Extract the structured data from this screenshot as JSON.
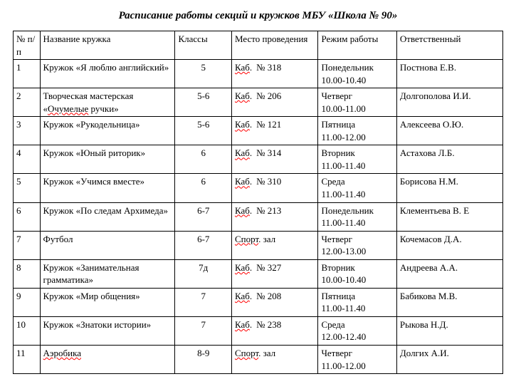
{
  "title": "Расписание работы секций и кружков МБУ «Школа № 90»",
  "headers": {
    "num": "№ п/п",
    "name": "Название кружка",
    "class": "Классы",
    "place": "Место проведения",
    "schedule": "Режим работы",
    "responsible": "Ответственный"
  },
  "kab_prefix": "Каб",
  "kab_dot": ".",
  "num_sign": "№",
  "sport_prefix": "Спорт",
  "sport_suffix": "зал",
  "aerobika": "Аэробика",
  "ochumelye": "Очумелые",
  "rows": [
    {
      "num": "1",
      "name": "Кружок «Я люблю английский»",
      "class": "5",
      "place_no": "318",
      "day": "Понедельник",
      "time": "10.00-10.40",
      "resp": "Постнова Е.В."
    },
    {
      "num": "2",
      "name_pre": "Творческая мастерская «",
      "name_post": " ручки»",
      "class": "5-6",
      "place_no": "206",
      "day": "Четверг",
      "time": "10.00-11.00",
      "resp": "Долгополова И.И."
    },
    {
      "num": "3",
      "name": "Кружок «Рукодельница»",
      "class": "5-6",
      "place_no": "121",
      "day": "Пятница",
      "time": "11.00-12.00",
      "resp": "Алексеева О.Ю."
    },
    {
      "num": "4",
      "name": "Кружок «Юный риторик»",
      "class": "6",
      "place_no": "314",
      "day": "Вторник",
      "time": "11.00-11.40",
      "resp": "Астахова Л.Б."
    },
    {
      "num": "5",
      "name": "Кружок «Учимся вместе»",
      "class": "6",
      "place_no": "310",
      "day": "Среда",
      "time": "11.00-11.40",
      "resp": "Борисова Н.М."
    },
    {
      "num": "6",
      "name": "Кружок «По следам Архимеда»",
      "class": "6-7",
      "place_no": "213",
      "day": "Понедельник",
      "time": "11.00-11.40",
      "resp": "Клементьева В. Е"
    },
    {
      "num": "7",
      "name": "Футбол",
      "class": "6-7",
      "place_sport": true,
      "day": "Четверг",
      "time": "12.00-13.00",
      "resp": "Кочемасов Д.А."
    },
    {
      "num": "8",
      "name": "Кружок «Занимательная грамматика»",
      "class": "7д",
      "place_no": "327",
      "day": "Вторник",
      "time": "10.00-10.40",
      "resp": "Андреева А.А."
    },
    {
      "num": "9",
      "name": "Кружок «Мир общения»",
      "class": "7",
      "place_no": "208",
      "day": "Пятница",
      "time": "11.00-11.40",
      "resp": "Бабикова М.В."
    },
    {
      "num": "10",
      "name": "Кружок «Знатоки истории»",
      "class": "7",
      "place_no": "238",
      "day": "Среда",
      "time": "12.00-12.40",
      "resp": "Рыкова Н.Д."
    },
    {
      "num": "11",
      "name_aerobika": true,
      "class": "8-9",
      "place_sport": true,
      "day": "Четверг",
      "time": "11.00-12.00",
      "resp": "Долгих А.И."
    }
  ]
}
